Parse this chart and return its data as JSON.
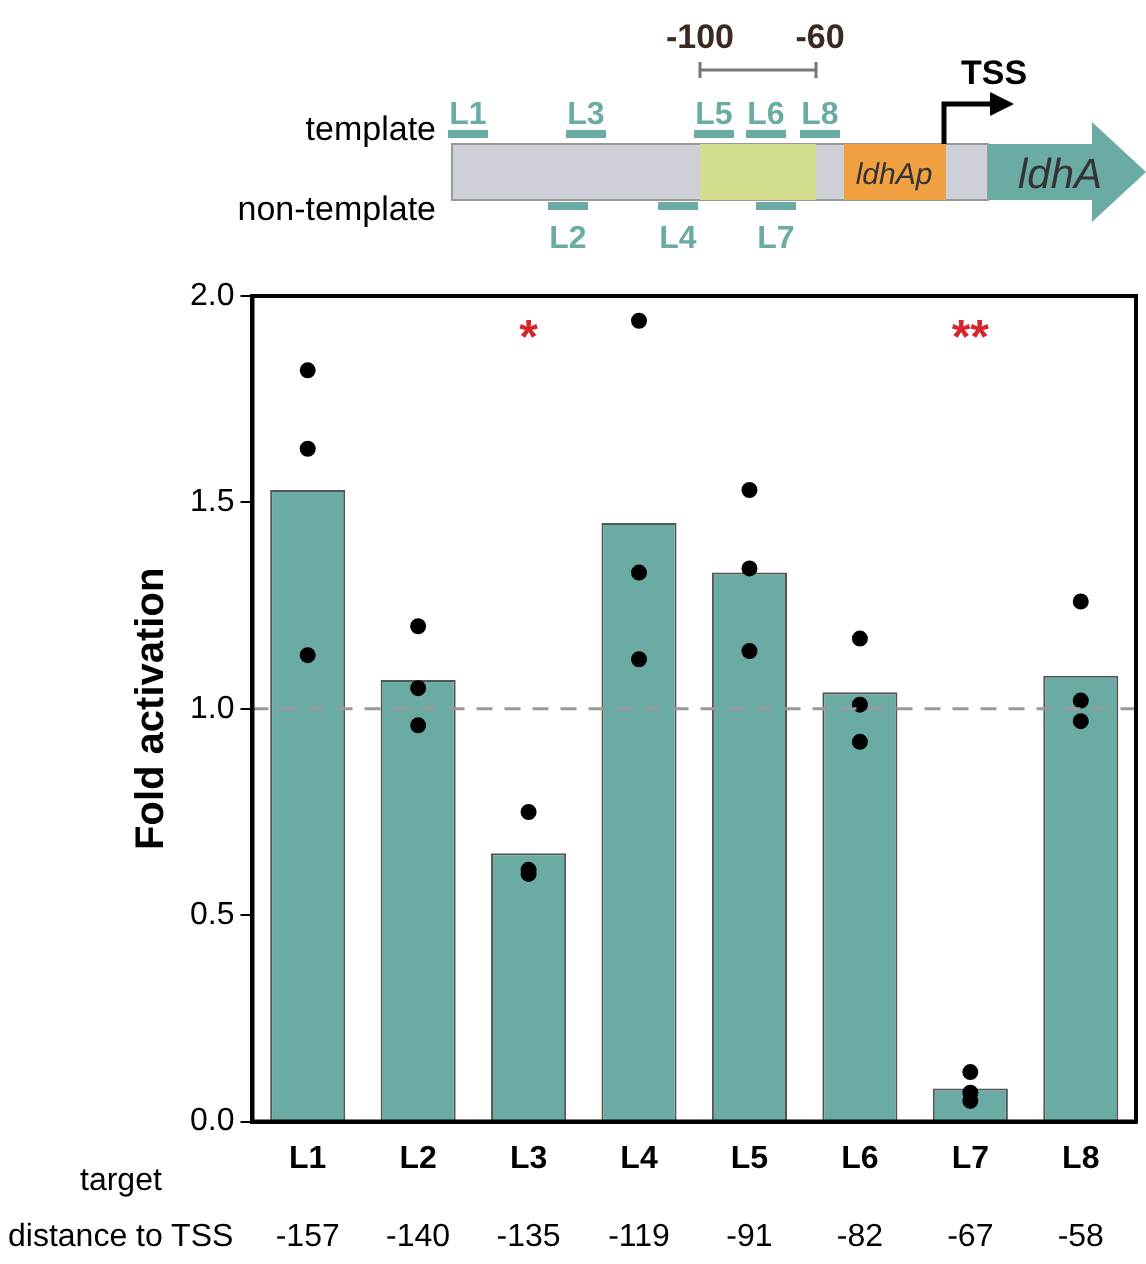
{
  "chart_data": {
    "type": "bar",
    "ylabel": "Fold activation",
    "categories": [
      "L1",
      "L2",
      "L3",
      "L4",
      "L5",
      "L6",
      "L7",
      "L8"
    ],
    "series": [
      {
        "color": "#6aaba3",
        "values": [
          1.53,
          1.07,
          0.65,
          1.45,
          1.33,
          1.04,
          0.08,
          1.08
        ]
      },
      {
        "type": "scatter",
        "color": "#000000",
        "marker": "circle",
        "x": [
          "L1",
          "L1",
          "L1",
          "L2",
          "L2",
          "L2",
          "L3",
          "L3",
          "L3",
          "L4",
          "L4",
          "L4",
          "L5",
          "L5",
          "L5",
          "L6",
          "L6",
          "L6",
          "L7",
          "L7",
          "L7",
          "L8",
          "L8",
          "L8"
        ],
        "values": [
          1.82,
          1.63,
          1.13,
          1.2,
          1.05,
          0.96,
          0.75,
          0.61,
          0.6,
          1.94,
          1.33,
          1.12,
          1.53,
          1.34,
          1.14,
          1.17,
          1.01,
          0.92,
          0.12,
          0.07,
          0.05,
          1.26,
          1.02,
          0.97
        ]
      }
    ],
    "ylim": [
      0,
      2
    ],
    "yticks": [
      {
        "value": 0,
        "label": "0.0"
      },
      {
        "value": 0.5,
        "label": "0.5"
      },
      {
        "value": 1,
        "label": "1.0"
      },
      {
        "value": 1.5,
        "label": "1.5"
      },
      {
        "value": 2,
        "label": "2.0"
      }
    ],
    "ref_lines": [
      {
        "axis": "y",
        "value": 1,
        "color": "#999999",
        "line_style": "dashed"
      }
    ],
    "grid": false,
    "legend": false,
    "annotations": [
      "template",
      "non-template",
      "-100",
      "-60",
      "TSS",
      "L1",
      "L3",
      "L5",
      "L6",
      "L8",
      "L2",
      "L4",
      "L7",
      "ldhAp",
      "ldhA",
      "target",
      "distance to TSS",
      "-157",
      "-140",
      "-135",
      "-119",
      "-91",
      "-82",
      "-67",
      "-58",
      "*",
      "**"
    ]
  }
}
